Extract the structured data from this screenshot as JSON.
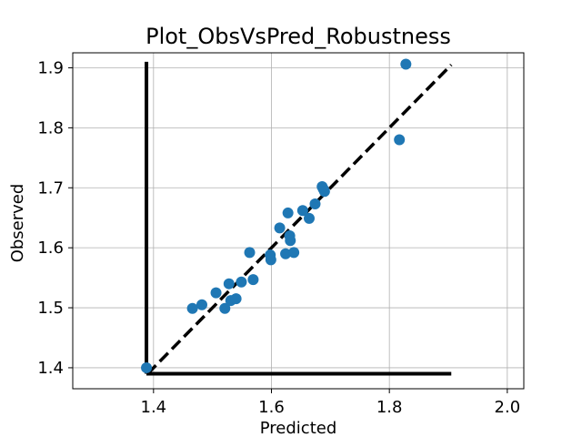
{
  "chart_data": {
    "type": "scatter",
    "title": "Plot_ObsVsPred_Robustness",
    "xlabel": "Predicted",
    "ylabel": "Observed",
    "xlim": [
      1.263,
      2.028
    ],
    "ylim": [
      1.365,
      1.925
    ],
    "xticks": [
      1.4,
      1.6,
      1.8,
      2.0
    ],
    "yticks": [
      1.4,
      1.5,
      1.6,
      1.7,
      1.8,
      1.9
    ],
    "xtick_labels": [
      "1.4",
      "1.6",
      "1.8",
      "2.0"
    ],
    "ytick_labels": [
      "1.4",
      "1.5",
      "1.6",
      "1.7",
      "1.8",
      "1.9"
    ],
    "grid": true,
    "marker_color": "#1f77b4",
    "identity_line": {
      "from": [
        1.39,
        1.39
      ],
      "to": [
        1.905,
        1.905
      ],
      "style": "dashed",
      "color": "#000000"
    },
    "threshold_lines": {
      "vertical": {
        "x": 1.388,
        "y_from": 1.39,
        "y_to": 1.91,
        "color": "#000000"
      },
      "horizontal": {
        "y": 1.39,
        "x_from": 1.388,
        "x_to": 1.905,
        "color": "#000000"
      }
    },
    "points": [
      {
        "x": 1.388,
        "y": 1.4
      },
      {
        "x": 1.466,
        "y": 1.499
      },
      {
        "x": 1.482,
        "y": 1.505
      },
      {
        "x": 1.506,
        "y": 1.525
      },
      {
        "x": 1.521,
        "y": 1.499
      },
      {
        "x": 1.528,
        "y": 1.54
      },
      {
        "x": 1.531,
        "y": 1.512
      },
      {
        "x": 1.54,
        "y": 1.515
      },
      {
        "x": 1.549,
        "y": 1.543
      },
      {
        "x": 1.563,
        "y": 1.592
      },
      {
        "x": 1.569,
        "y": 1.547
      },
      {
        "x": 1.598,
        "y": 1.588
      },
      {
        "x": 1.599,
        "y": 1.58
      },
      {
        "x": 1.614,
        "y": 1.633
      },
      {
        "x": 1.624,
        "y": 1.59
      },
      {
        "x": 1.628,
        "y": 1.658
      },
      {
        "x": 1.631,
        "y": 1.62
      },
      {
        "x": 1.632,
        "y": 1.612
      },
      {
        "x": 1.638,
        "y": 1.592
      },
      {
        "x": 1.653,
        "y": 1.662
      },
      {
        "x": 1.664,
        "y": 1.649
      },
      {
        "x": 1.674,
        "y": 1.673
      },
      {
        "x": 1.686,
        "y": 1.702
      },
      {
        "x": 1.688,
        "y": 1.698
      },
      {
        "x": 1.69,
        "y": 1.694
      },
      {
        "x": 1.817,
        "y": 1.78
      },
      {
        "x": 1.828,
        "y": 1.906
      }
    ]
  }
}
